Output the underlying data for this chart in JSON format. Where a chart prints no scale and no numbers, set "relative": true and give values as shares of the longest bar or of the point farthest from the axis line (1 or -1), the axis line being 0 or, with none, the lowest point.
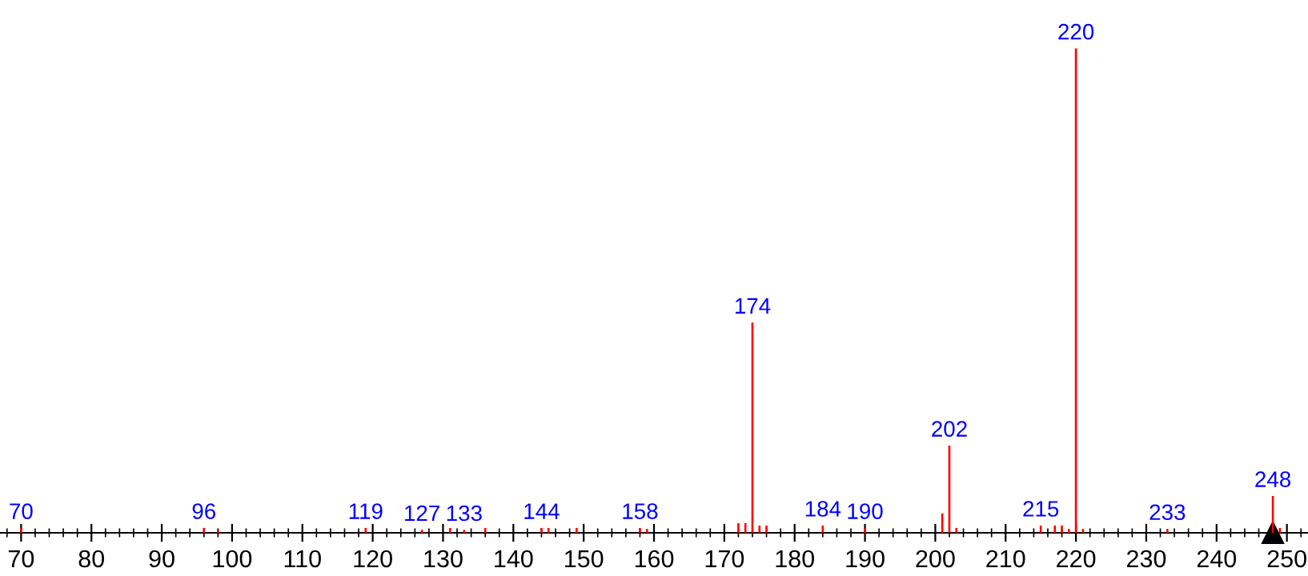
{
  "chart_data": {
    "type": "bar",
    "relative": true,
    "x": [
      70,
      96,
      98,
      119,
      127,
      131,
      133,
      136,
      144,
      145,
      149,
      158,
      159,
      172,
      173,
      174,
      175,
      176,
      184,
      190,
      201,
      202,
      203,
      215,
      217,
      218,
      219,
      220,
      221,
      233,
      248,
      249
    ],
    "values": [
      0.01,
      0.01,
      0.008,
      0.01,
      0.006,
      0.01,
      0.006,
      0.01,
      0.01,
      0.01,
      0.01,
      0.01,
      0.008,
      0.02,
      0.02,
      0.434,
      0.015,
      0.015,
      0.015,
      0.01,
      0.04,
      0.18,
      0.01,
      0.015,
      0.015,
      0.015,
      0.008,
      1,
      0.008,
      0.008,
      0.076,
      0.01
    ],
    "annotations": [
      {
        "text": "70",
        "x": 70,
        "y": 0.01
      },
      {
        "text": "96",
        "x": 96,
        "y": 0.01
      },
      {
        "text": "119",
        "x": 119,
        "y": 0.01
      },
      {
        "text": "127",
        "x": 127,
        "y": 0.006
      },
      {
        "text": "133",
        "x": 133,
        "y": 0.006
      },
      {
        "text": "144",
        "x": 144,
        "y": 0.01
      },
      {
        "text": "158",
        "x": 158,
        "y": 0.01
      },
      {
        "text": "174",
        "x": 174,
        "y": 0.434
      },
      {
        "text": "184",
        "x": 184,
        "y": 0.015
      },
      {
        "text": "190",
        "x": 190,
        "y": 0.01
      },
      {
        "text": "202",
        "x": 202,
        "y": 0.18
      },
      {
        "text": "215",
        "x": 215,
        "y": 0.015
      },
      {
        "text": "220",
        "x": 220,
        "y": 1
      },
      {
        "text": "233",
        "x": 233,
        "y": 0.008
      },
      {
        "text": "248",
        "x": 248,
        "y": 0.076
      }
    ],
    "color": "#ff0000",
    "xlim": [
      67,
      253
    ],
    "xticks": [
      70,
      80,
      90,
      100,
      110,
      120,
      130,
      140,
      150,
      160,
      170,
      180,
      190,
      200,
      210,
      220,
      230,
      240,
      250
    ],
    "tick_labels": "x",
    "grid": false,
    "legend": false
  }
}
